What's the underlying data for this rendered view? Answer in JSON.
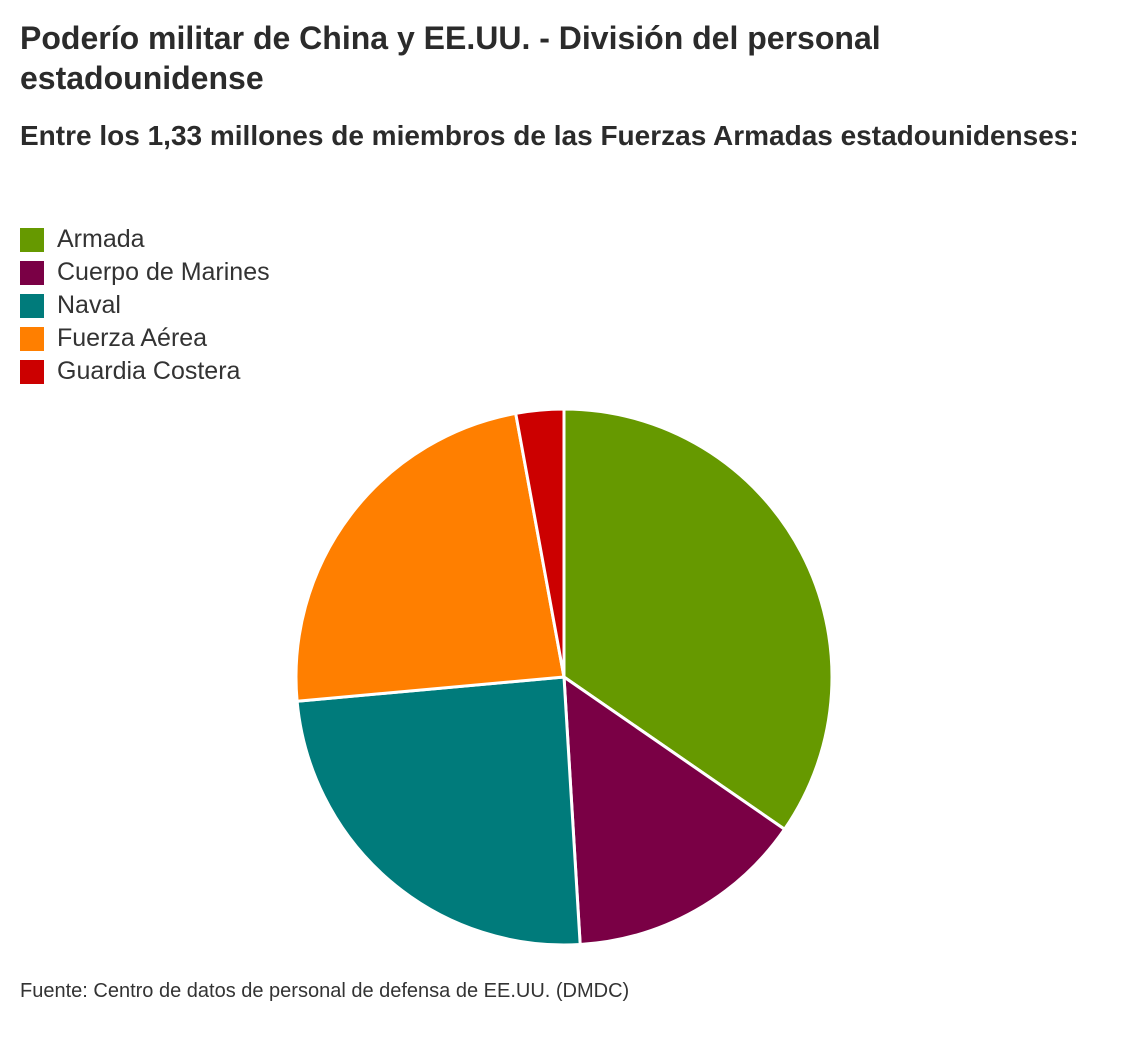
{
  "chart_data": {
    "type": "pie",
    "title": "Poderío militar de China y EE.UU. - División del personal estadounidense",
    "subtitle": "Entre los 1,33 millones de miembros de las Fuerzas Armadas estadounidenses:",
    "legend_position": "top-left",
    "slices": [
      {
        "label": "Armada",
        "value": 36.0,
        "color": "#669900"
      },
      {
        "label": "Cuerpo de Marines",
        "value": 15.0,
        "color": "#7a0045"
      },
      {
        "label": "Naval",
        "value": 25.5,
        "color": "#007b7b"
      },
      {
        "label": "Fuerza Aérea",
        "value": 24.5,
        "color": "#ff7f00"
      },
      {
        "label": "Guardia Costera",
        "value": 3.0,
        "color": "#cc0000"
      }
    ]
  },
  "source": "Fuente: Centro de datos de personal de defensa de EE.UU. (DMDC)"
}
